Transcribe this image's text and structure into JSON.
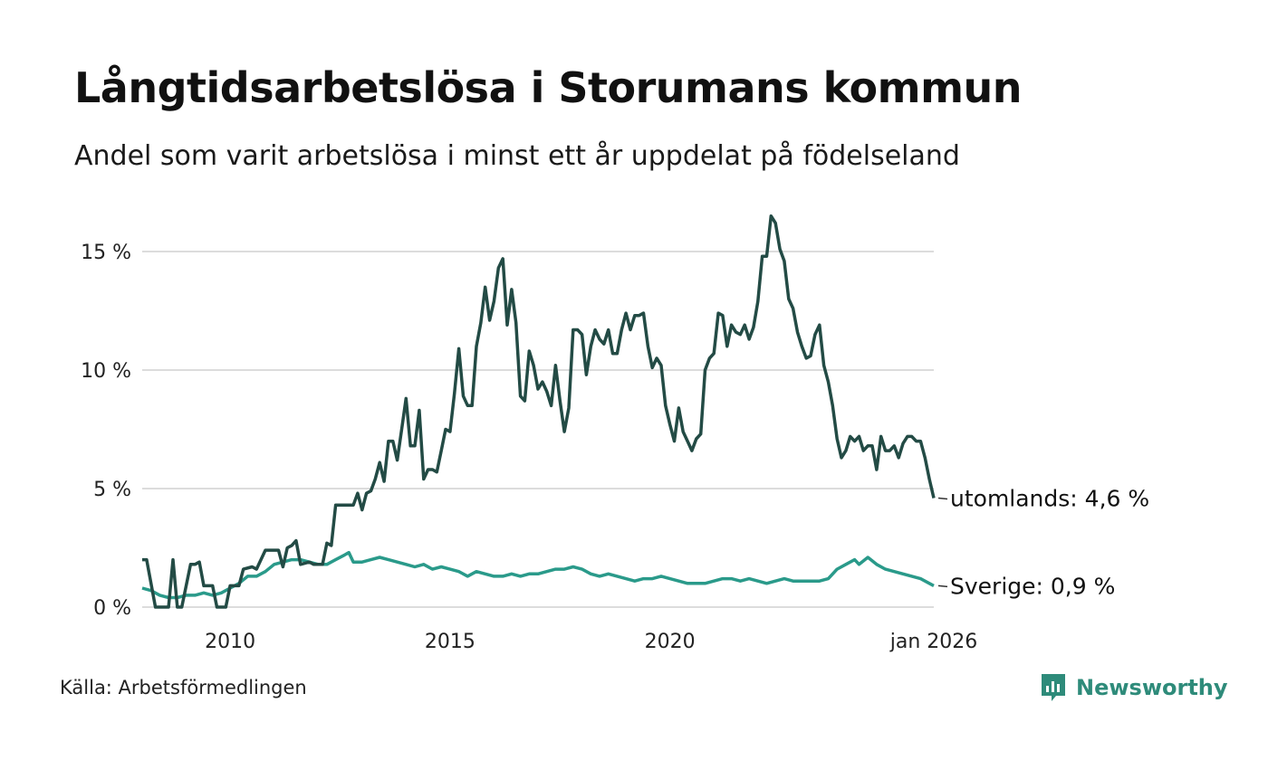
{
  "title": "Långtidsarbetslösa i Storumans kommun",
  "subtitle": "Andel som varit arbetslösa i minst ett år uppdelat på födelseland",
  "source": "Källa: Arbetsförmedlingen",
  "brand": {
    "name": "Newsworthy",
    "icon": "newsworthy-logo-icon",
    "color": "#2e8b7a"
  },
  "chart_data": {
    "type": "line",
    "title": "Långtidsarbetslösa i Storumans kommun",
    "ylabel": "",
    "xlabel": "",
    "x_range": [
      2008.0,
      2026.0
    ],
    "ylim": [
      0,
      16.5
    ],
    "y_ticks": [
      {
        "value": 0,
        "label": "0 %"
      },
      {
        "value": 5,
        "label": "5 %"
      },
      {
        "value": 10,
        "label": "10 %"
      },
      {
        "value": 15,
        "label": "15 %"
      }
    ],
    "x_ticks": [
      {
        "value": 2010,
        "label": "2010"
      },
      {
        "value": 2015,
        "label": "2015"
      },
      {
        "value": 2020,
        "label": "2020"
      },
      {
        "value": 2026,
        "label": "jan 2026"
      }
    ],
    "grid": "horizontal",
    "series": [
      {
        "name": "utomlands",
        "end_label": "utomlands: 4,6 %",
        "color": "#234b45",
        "points": [
          [
            2008.0,
            2.0
          ],
          [
            2008.1,
            2.0
          ],
          [
            2008.3,
            0.0
          ],
          [
            2008.6,
            0.0
          ],
          [
            2008.7,
            2.0
          ],
          [
            2008.8,
            0.0
          ],
          [
            2008.9,
            0.0
          ],
          [
            2009.1,
            1.8
          ],
          [
            2009.2,
            1.8
          ],
          [
            2009.3,
            1.9
          ],
          [
            2009.4,
            0.9
          ],
          [
            2009.6,
            0.9
          ],
          [
            2009.7,
            0.0
          ],
          [
            2009.9,
            0.0
          ],
          [
            2010.0,
            0.9
          ],
          [
            2010.2,
            0.9
          ],
          [
            2010.3,
            1.6
          ],
          [
            2010.5,
            1.7
          ],
          [
            2010.6,
            1.6
          ],
          [
            2010.8,
            2.4
          ],
          [
            2010.9,
            2.4
          ],
          [
            2011.1,
            2.4
          ],
          [
            2011.2,
            1.7
          ],
          [
            2011.3,
            2.5
          ],
          [
            2011.4,
            2.6
          ],
          [
            2011.5,
            2.8
          ],
          [
            2011.6,
            1.8
          ],
          [
            2011.8,
            1.9
          ],
          [
            2011.9,
            1.8
          ],
          [
            2012.1,
            1.8
          ],
          [
            2012.2,
            2.7
          ],
          [
            2012.3,
            2.6
          ],
          [
            2012.4,
            4.3
          ],
          [
            2012.6,
            4.3
          ],
          [
            2012.8,
            4.3
          ],
          [
            2012.9,
            4.8
          ],
          [
            2013.0,
            4.1
          ],
          [
            2013.1,
            4.8
          ],
          [
            2013.2,
            4.9
          ],
          [
            2013.3,
            5.4
          ],
          [
            2013.4,
            6.1
          ],
          [
            2013.5,
            5.3
          ],
          [
            2013.6,
            7.0
          ],
          [
            2013.7,
            7.0
          ],
          [
            2013.8,
            6.2
          ],
          [
            2013.9,
            7.5
          ],
          [
            2014.0,
            8.8
          ],
          [
            2014.1,
            6.8
          ],
          [
            2014.2,
            6.8
          ],
          [
            2014.3,
            8.3
          ],
          [
            2014.4,
            5.4
          ],
          [
            2014.5,
            5.8
          ],
          [
            2014.6,
            5.8
          ],
          [
            2014.7,
            5.7
          ],
          [
            2014.8,
            6.6
          ],
          [
            2014.9,
            7.5
          ],
          [
            2015.0,
            7.4
          ],
          [
            2015.1,
            9.0
          ],
          [
            2015.2,
            10.9
          ],
          [
            2015.3,
            8.9
          ],
          [
            2015.4,
            8.5
          ],
          [
            2015.5,
            8.5
          ],
          [
            2015.6,
            11.0
          ],
          [
            2015.7,
            12.0
          ],
          [
            2015.8,
            13.5
          ],
          [
            2015.9,
            12.1
          ],
          [
            2016.0,
            12.9
          ],
          [
            2016.1,
            14.3
          ],
          [
            2016.2,
            14.7
          ],
          [
            2016.3,
            11.9
          ],
          [
            2016.4,
            13.4
          ],
          [
            2016.5,
            12.0
          ],
          [
            2016.6,
            8.9
          ],
          [
            2016.7,
            8.7
          ],
          [
            2016.8,
            10.8
          ],
          [
            2016.9,
            10.2
          ],
          [
            2017.0,
            9.2
          ],
          [
            2017.1,
            9.5
          ],
          [
            2017.2,
            9.1
          ],
          [
            2017.3,
            8.5
          ],
          [
            2017.4,
            10.2
          ],
          [
            2017.5,
            8.7
          ],
          [
            2017.6,
            7.4
          ],
          [
            2017.7,
            8.4
          ],
          [
            2017.8,
            11.7
          ],
          [
            2017.9,
            11.7
          ],
          [
            2018.0,
            11.5
          ],
          [
            2018.1,
            9.8
          ],
          [
            2018.2,
            11.0
          ],
          [
            2018.3,
            11.7
          ],
          [
            2018.4,
            11.3
          ],
          [
            2018.5,
            11.1
          ],
          [
            2018.6,
            11.7
          ],
          [
            2018.7,
            10.7
          ],
          [
            2018.8,
            10.7
          ],
          [
            2018.9,
            11.7
          ],
          [
            2019.0,
            12.4
          ],
          [
            2019.1,
            11.7
          ],
          [
            2019.2,
            12.3
          ],
          [
            2019.3,
            12.3
          ],
          [
            2019.4,
            12.4
          ],
          [
            2019.5,
            11.0
          ],
          [
            2019.6,
            10.1
          ],
          [
            2019.7,
            10.5
          ],
          [
            2019.8,
            10.2
          ],
          [
            2019.9,
            8.5
          ],
          [
            2020.0,
            7.7
          ],
          [
            2020.1,
            7.0
          ],
          [
            2020.2,
            8.4
          ],
          [
            2020.3,
            7.4
          ],
          [
            2020.4,
            7.0
          ],
          [
            2020.5,
            6.6
          ],
          [
            2020.6,
            7.1
          ],
          [
            2020.7,
            7.3
          ],
          [
            2020.8,
            10.0
          ],
          [
            2020.9,
            10.5
          ],
          [
            2021.0,
            10.7
          ],
          [
            2021.1,
            12.4
          ],
          [
            2021.2,
            12.3
          ],
          [
            2021.3,
            11.0
          ],
          [
            2021.4,
            11.9
          ],
          [
            2021.5,
            11.6
          ],
          [
            2021.6,
            11.5
          ],
          [
            2021.7,
            11.9
          ],
          [
            2021.8,
            11.3
          ],
          [
            2021.9,
            11.8
          ],
          [
            2022.0,
            12.9
          ],
          [
            2022.1,
            14.8
          ],
          [
            2022.2,
            14.8
          ],
          [
            2022.3,
            16.5
          ],
          [
            2022.4,
            16.2
          ],
          [
            2022.5,
            15.1
          ],
          [
            2022.6,
            14.6
          ],
          [
            2022.7,
            13.0
          ],
          [
            2022.8,
            12.6
          ],
          [
            2022.9,
            11.6
          ],
          [
            2023.0,
            11.0
          ],
          [
            2023.1,
            10.5
          ],
          [
            2023.2,
            10.6
          ],
          [
            2023.3,
            11.5
          ],
          [
            2023.4,
            11.9
          ],
          [
            2023.5,
            10.2
          ],
          [
            2023.6,
            9.5
          ],
          [
            2023.7,
            8.5
          ],
          [
            2023.8,
            7.1
          ],
          [
            2023.9,
            6.3
          ],
          [
            2024.0,
            6.6
          ],
          [
            2024.1,
            7.2
          ],
          [
            2024.2,
            7.0
          ],
          [
            2024.3,
            7.2
          ],
          [
            2024.4,
            6.6
          ],
          [
            2024.5,
            6.8
          ],
          [
            2024.6,
            6.8
          ],
          [
            2024.7,
            5.8
          ],
          [
            2024.8,
            7.2
          ],
          [
            2024.9,
            6.6
          ],
          [
            2025.0,
            6.6
          ],
          [
            2025.1,
            6.8
          ],
          [
            2025.2,
            6.3
          ],
          [
            2025.3,
            6.9
          ],
          [
            2025.4,
            7.2
          ],
          [
            2025.5,
            7.2
          ],
          [
            2025.6,
            7.0
          ],
          [
            2025.7,
            7.0
          ],
          [
            2025.8,
            6.3
          ],
          [
            2025.9,
            5.4
          ],
          [
            2026.0,
            4.6
          ]
        ]
      },
      {
        "name": "Sverige",
        "end_label": "Sverige: 0,9 %",
        "color": "#2a9a8a",
        "points": [
          [
            2008.0,
            0.8
          ],
          [
            2008.2,
            0.7
          ],
          [
            2008.4,
            0.5
          ],
          [
            2008.6,
            0.4
          ],
          [
            2008.8,
            0.4
          ],
          [
            2009.0,
            0.5
          ],
          [
            2009.2,
            0.5
          ],
          [
            2009.4,
            0.6
          ],
          [
            2009.6,
            0.5
          ],
          [
            2009.8,
            0.6
          ],
          [
            2010.0,
            0.8
          ],
          [
            2010.2,
            1.0
          ],
          [
            2010.4,
            1.3
          ],
          [
            2010.6,
            1.3
          ],
          [
            2010.8,
            1.5
          ],
          [
            2011.0,
            1.8
          ],
          [
            2011.2,
            1.9
          ],
          [
            2011.4,
            2.0
          ],
          [
            2011.6,
            2.0
          ],
          [
            2011.8,
            1.9
          ],
          [
            2012.0,
            1.8
          ],
          [
            2012.2,
            1.8
          ],
          [
            2012.4,
            2.0
          ],
          [
            2012.6,
            2.2
          ],
          [
            2012.7,
            2.3
          ],
          [
            2012.8,
            1.9
          ],
          [
            2013.0,
            1.9
          ],
          [
            2013.2,
            2.0
          ],
          [
            2013.4,
            2.1
          ],
          [
            2013.6,
            2.0
          ],
          [
            2013.8,
            1.9
          ],
          [
            2014.0,
            1.8
          ],
          [
            2014.2,
            1.7
          ],
          [
            2014.4,
            1.8
          ],
          [
            2014.6,
            1.6
          ],
          [
            2014.8,
            1.7
          ],
          [
            2015.0,
            1.6
          ],
          [
            2015.2,
            1.5
          ],
          [
            2015.4,
            1.3
          ],
          [
            2015.6,
            1.5
          ],
          [
            2015.8,
            1.4
          ],
          [
            2016.0,
            1.3
          ],
          [
            2016.2,
            1.3
          ],
          [
            2016.4,
            1.4
          ],
          [
            2016.6,
            1.3
          ],
          [
            2016.8,
            1.4
          ],
          [
            2017.0,
            1.4
          ],
          [
            2017.2,
            1.5
          ],
          [
            2017.4,
            1.6
          ],
          [
            2017.6,
            1.6
          ],
          [
            2017.8,
            1.7
          ],
          [
            2018.0,
            1.6
          ],
          [
            2018.2,
            1.4
          ],
          [
            2018.4,
            1.3
          ],
          [
            2018.6,
            1.4
          ],
          [
            2018.8,
            1.3
          ],
          [
            2019.0,
            1.2
          ],
          [
            2019.2,
            1.1
          ],
          [
            2019.4,
            1.2
          ],
          [
            2019.6,
            1.2
          ],
          [
            2019.8,
            1.3
          ],
          [
            2020.0,
            1.2
          ],
          [
            2020.2,
            1.1
          ],
          [
            2020.4,
            1.0
          ],
          [
            2020.6,
            1.0
          ],
          [
            2020.8,
            1.0
          ],
          [
            2021.0,
            1.1
          ],
          [
            2021.2,
            1.2
          ],
          [
            2021.4,
            1.2
          ],
          [
            2021.6,
            1.1
          ],
          [
            2021.8,
            1.2
          ],
          [
            2022.0,
            1.1
          ],
          [
            2022.2,
            1.0
          ],
          [
            2022.4,
            1.1
          ],
          [
            2022.6,
            1.2
          ],
          [
            2022.8,
            1.1
          ],
          [
            2023.0,
            1.1
          ],
          [
            2023.2,
            1.1
          ],
          [
            2023.4,
            1.1
          ],
          [
            2023.6,
            1.2
          ],
          [
            2023.8,
            1.6
          ],
          [
            2024.0,
            1.8
          ],
          [
            2024.2,
            2.0
          ],
          [
            2024.3,
            1.8
          ],
          [
            2024.5,
            2.1
          ],
          [
            2024.7,
            1.8
          ],
          [
            2024.9,
            1.6
          ],
          [
            2025.1,
            1.5
          ],
          [
            2025.3,
            1.4
          ],
          [
            2025.5,
            1.3
          ],
          [
            2025.7,
            1.2
          ],
          [
            2025.9,
            1.0
          ],
          [
            2026.0,
            0.9
          ]
        ]
      }
    ]
  }
}
